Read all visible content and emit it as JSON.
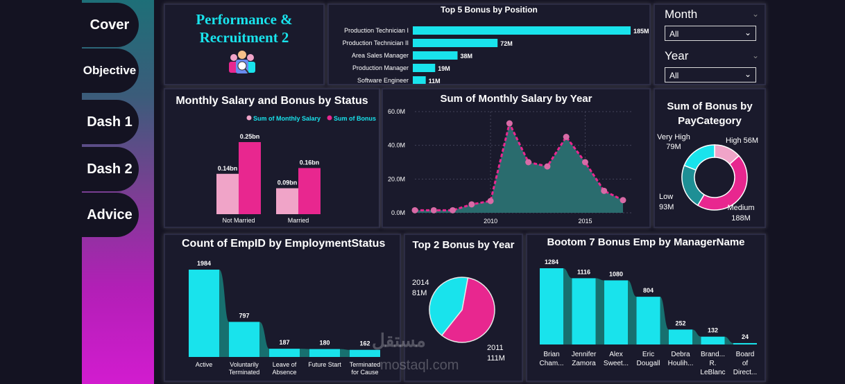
{
  "nav": [
    "Cover",
    "Objective",
    "Dash 1",
    "Dash 2",
    "Advice"
  ],
  "header": {
    "title_line1": "Performance &",
    "title_line2": "Recruitment 2"
  },
  "slicers": {
    "month": {
      "label": "Month",
      "value": "All"
    },
    "year": {
      "label": "Year",
      "value": "All"
    }
  },
  "colors": {
    "cyan": "#19e3ec",
    "pink": "#e8278f",
    "light_pink": "#f0a4c8",
    "teal_area": "#2a6c6e",
    "dark_teal": "#1e8f95"
  },
  "top5": {
    "title": "Top 5 Bonus by Position",
    "categories": [
      "Production Technician I",
      "Production Technician II",
      "Area Sales Manager",
      "Production Manager",
      "Software Engineer"
    ],
    "values": [
      185,
      72,
      38,
      19,
      11
    ],
    "labels": [
      "185M",
      "72M",
      "38M",
      "19M",
      "11M"
    ]
  },
  "status_chart": {
    "title": "Monthly Salary and Bonus by Status",
    "legend": [
      "Sum of Monthly Salary",
      "Sum of Bonus"
    ],
    "categories": [
      "Not Married",
      "Married"
    ],
    "salary": [
      0.14,
      0.09
    ],
    "bonus": [
      0.25,
      0.16
    ],
    "salary_labels": [
      "0.14bn",
      "0.09bn"
    ],
    "bonus_labels": [
      "0.25bn",
      "0.16bn"
    ]
  },
  "salary_year": {
    "title": "Sum of Monthly Salary by Year",
    "y_ticks": [
      "0.0M",
      "20.0M",
      "40.0M",
      "60.0M"
    ],
    "x_ticks": [
      "2010",
      "2015"
    ]
  },
  "paycat": {
    "title_line1": "Sum of Bonus by",
    "title_line2": "PayCategory",
    "labels": {
      "very_high": "Very High",
      "very_high_val": "79M",
      "high": "High 56M",
      "low": "Low",
      "low_val": "93M",
      "medium": "Medium",
      "medium_val": "188M"
    }
  },
  "employment": {
    "title": "Count of EmpID by EmploymentStatus",
    "categories": [
      [
        "Active"
      ],
      [
        "Voluntarily",
        "Terminated"
      ],
      [
        "Leave of",
        "Absence"
      ],
      [
        "Future Start"
      ],
      [
        "Terminated",
        "for Cause"
      ]
    ],
    "values": [
      1984,
      797,
      187,
      180,
      162
    ]
  },
  "top2": {
    "title": "Top 2 Bonus by Year",
    "labels": {
      "y2014": "2014",
      "v2014": "81M",
      "y2011": "2011",
      "v2011": "111M"
    }
  },
  "managers": {
    "title": "Bootom 7 Bonus Emp by ManagerName",
    "categories": [
      [
        "Brian",
        "Cham..."
      ],
      [
        "Jennifer",
        "Zamora"
      ],
      [
        "Alex",
        "Sweet..."
      ],
      [
        "Eric",
        "Dougall"
      ],
      [
        "Debra",
        "Houlih..."
      ],
      [
        "Brand...",
        "R.",
        "LeBlanc"
      ],
      [
        "Board",
        "of",
        "Direct..."
      ]
    ],
    "values": [
      1284,
      1116,
      1080,
      804,
      252,
      132,
      24
    ]
  },
  "chart_data": [
    {
      "type": "bar",
      "title": "Top 5 Bonus by Position",
      "categories": [
        "Production Technician I",
        "Production Technician II",
        "Area Sales Manager",
        "Production Manager",
        "Software Engineer"
      ],
      "values": [
        185,
        72,
        38,
        19,
        11
      ]
    },
    {
      "type": "bar",
      "title": "Monthly Salary and Bonus by Status",
      "categories": [
        "Not Married",
        "Married"
      ],
      "series": [
        {
          "name": "Sum of Monthly Salary",
          "values": [
            0.14,
            0.09
          ]
        },
        {
          "name": "Sum of Bonus",
          "values": [
            0.25,
            0.16
          ]
        }
      ]
    },
    {
      "type": "area",
      "title": "Sum of Monthly Salary by Year",
      "x": [
        2006,
        2007,
        2008,
        2009,
        2010,
        2011,
        2012,
        2013,
        2014,
        2015,
        2016,
        2017
      ],
      "values": [
        1.5,
        1.5,
        1.5,
        5,
        7,
        53,
        30,
        27.5,
        45,
        30,
        13,
        7.5
      ],
      "ylim": [
        0,
        60
      ]
    },
    {
      "type": "pie",
      "title": "Sum of Bonus by PayCategory",
      "categories": [
        "High",
        "Medium",
        "Low",
        "Very High"
      ],
      "values": [
        56,
        188,
        93,
        79
      ]
    },
    {
      "type": "bar",
      "title": "Count of EmpID by EmploymentStatus",
      "categories": [
        "Active",
        "Voluntarily Terminated",
        "Leave of Absence",
        "Future Start",
        "Terminated for Cause"
      ],
      "values": [
        1984,
        797,
        187,
        180,
        162
      ]
    },
    {
      "type": "pie",
      "title": "Top 2 Bonus by Year",
      "categories": [
        "2011",
        "2014"
      ],
      "values": [
        111,
        81
      ]
    },
    {
      "type": "bar",
      "title": "Bootom 7 Bonus Emp by ManagerName",
      "categories": [
        "Brian Cham...",
        "Jennifer Zamora",
        "Alex Sweet...",
        "Eric Dougall",
        "Debra Houlih...",
        "Brand... R. LeBlanc",
        "Board of Direct..."
      ],
      "values": [
        1284,
        1116,
        1080,
        804,
        252,
        132,
        24
      ]
    }
  ],
  "watermark": {
    "arabic": "مستقل",
    "latin": "mostaql.com"
  }
}
